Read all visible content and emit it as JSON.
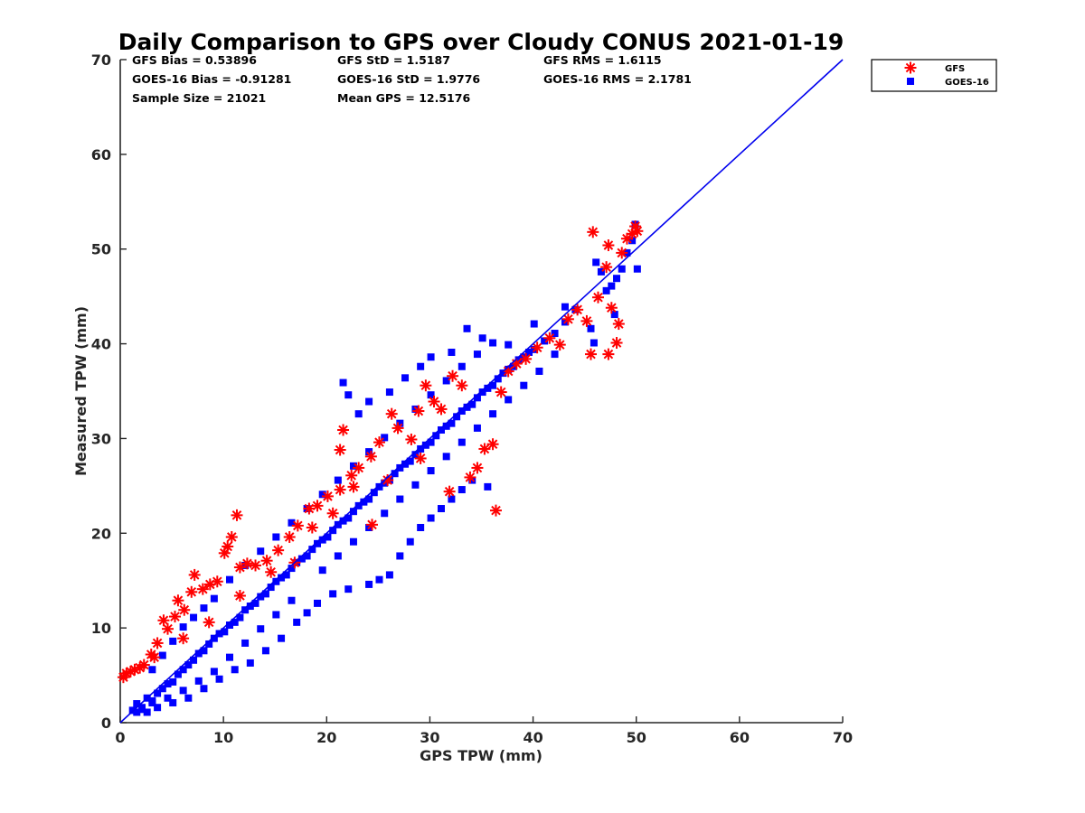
{
  "chart_data": {
    "type": "scatter",
    "title": "Daily Comparison to GPS over Cloudy CONUS 2021-01-19",
    "xlabel": "GPS TPW (mm)",
    "ylabel": "Measured TPW (mm)",
    "xlim": [
      0,
      70
    ],
    "ylim": [
      0,
      70
    ],
    "xticks": [
      "0",
      "10",
      "20",
      "30",
      "40",
      "50",
      "60",
      "70"
    ],
    "yticks": [
      "0",
      "10",
      "20",
      "30",
      "40",
      "50",
      "60",
      "70"
    ],
    "grid": false,
    "legend_position": "outside-top-right",
    "reference_line": {
      "x": [
        0,
        70
      ],
      "y": [
        0,
        70
      ],
      "color": "#0000ee"
    },
    "stats": [
      [
        "GFS Bias = 0.53896",
        "GFS StD = 1.5187",
        "GFS RMS = 1.6115"
      ],
      [
        "GOES-16 Bias = -0.91281",
        "GOES-16 StD = 1.9776",
        "GOES-16 RMS = 2.1781"
      ],
      [
        "Sample Size = 21021",
        "Mean GPS = 12.5176",
        ""
      ]
    ],
    "series": [
      {
        "name": "GFS",
        "marker": "asterisk",
        "color": "#ff0000",
        "points": [
          [
            0.3,
            4.8
          ],
          [
            0.6,
            5.2
          ],
          [
            1.0,
            5.4
          ],
          [
            1.4,
            5.6
          ],
          [
            1.9,
            5.8
          ],
          [
            2.3,
            6.1
          ],
          [
            3.0,
            7.2
          ],
          [
            3.6,
            8.4
          ],
          [
            4.2,
            10.8
          ],
          [
            4.6,
            9.9
          ],
          [
            5.3,
            11.2
          ],
          [
            5.6,
            12.9
          ],
          [
            6.2,
            11.9
          ],
          [
            6.9,
            13.8
          ],
          [
            7.2,
            15.6
          ],
          [
            8.0,
            14.1
          ],
          [
            8.7,
            14.6
          ],
          [
            9.4,
            14.9
          ],
          [
            10.1,
            17.9
          ],
          [
            10.4,
            18.6
          ],
          [
            10.8,
            19.6
          ],
          [
            11.3,
            21.9
          ],
          [
            11.6,
            16.4
          ],
          [
            12.3,
            16.8
          ],
          [
            13.1,
            16.6
          ],
          [
            14.2,
            17.1
          ],
          [
            15.3,
            18.2
          ],
          [
            16.4,
            19.6
          ],
          [
            17.2,
            20.8
          ],
          [
            18.3,
            22.6
          ],
          [
            19.1,
            22.9
          ],
          [
            20.1,
            23.9
          ],
          [
            21.3,
            24.6
          ],
          [
            21.6,
            30.9
          ],
          [
            21.3,
            28.8
          ],
          [
            22.4,
            26.1
          ],
          [
            23.1,
            26.9
          ],
          [
            24.3,
            28.1
          ],
          [
            25.1,
            29.6
          ],
          [
            26.3,
            32.6
          ],
          [
            26.9,
            31.1
          ],
          [
            28.2,
            29.9
          ],
          [
            28.9,
            32.9
          ],
          [
            29.6,
            35.6
          ],
          [
            30.4,
            33.9
          ],
          [
            31.1,
            33.1
          ],
          [
            32.2,
            36.6
          ],
          [
            33.1,
            35.6
          ],
          [
            33.9,
            25.9
          ],
          [
            34.6,
            26.9
          ],
          [
            35.3,
            28.9
          ],
          [
            36.1,
            29.4
          ],
          [
            36.4,
            22.4
          ],
          [
            36.9,
            34.9
          ],
          [
            37.6,
            37.1
          ],
          [
            38.4,
            37.9
          ],
          [
            39.3,
            38.4
          ],
          [
            40.4,
            39.6
          ],
          [
            41.6,
            40.6
          ],
          [
            42.6,
            39.9
          ],
          [
            43.4,
            42.6
          ],
          [
            44.3,
            43.6
          ],
          [
            45.2,
            42.4
          ],
          [
            45.6,
            38.9
          ],
          [
            45.8,
            51.8
          ],
          [
            46.3,
            44.9
          ],
          [
            47.1,
            48.1
          ],
          [
            47.3,
            50.4
          ],
          [
            47.6,
            43.8
          ],
          [
            47.3,
            38.9
          ],
          [
            48.1,
            40.1
          ],
          [
            48.3,
            42.1
          ],
          [
            48.6,
            49.6
          ],
          [
            49.1,
            51.1
          ],
          [
            49.6,
            51.6
          ],
          [
            49.9,
            52.4
          ],
          [
            50.1,
            51.9
          ],
          [
            25.9,
            25.6
          ],
          [
            22.6,
            24.9
          ],
          [
            18.6,
            20.6
          ],
          [
            14.6,
            15.9
          ],
          [
            11.6,
            13.4
          ],
          [
            8.6,
            10.6
          ],
          [
            6.1,
            8.9
          ],
          [
            3.3,
            6.9
          ],
          [
            16.9,
            16.9
          ],
          [
            29.1,
            27.9
          ],
          [
            31.9,
            24.4
          ],
          [
            24.4,
            20.9
          ],
          [
            20.6,
            22.1
          ]
        ]
      },
      {
        "name": "GOES-16",
        "marker": "square",
        "color": "#0000ff",
        "points": [
          [
            1.2,
            1.3
          ],
          [
            1.6,
            2.0
          ],
          [
            2.1,
            1.6
          ],
          [
            2.6,
            2.6
          ],
          [
            3.1,
            2.3
          ],
          [
            3.6,
            3.1
          ],
          [
            4.1,
            3.6
          ],
          [
            4.6,
            4.1
          ],
          [
            5.1,
            4.3
          ],
          [
            5.6,
            5.1
          ],
          [
            6.1,
            5.6
          ],
          [
            6.6,
            6.1
          ],
          [
            7.1,
            6.6
          ],
          [
            7.6,
            7.3
          ],
          [
            8.1,
            7.6
          ],
          [
            8.6,
            8.3
          ],
          [
            9.1,
            8.9
          ],
          [
            9.6,
            9.4
          ],
          [
            10.1,
            9.6
          ],
          [
            10.6,
            10.3
          ],
          [
            11.1,
            10.6
          ],
          [
            11.6,
            11.1
          ],
          [
            12.1,
            11.9
          ],
          [
            12.6,
            12.3
          ],
          [
            13.1,
            12.6
          ],
          [
            13.6,
            13.3
          ],
          [
            14.1,
            13.6
          ],
          [
            14.6,
            14.3
          ],
          [
            15.1,
            14.9
          ],
          [
            15.6,
            15.3
          ],
          [
            16.1,
            15.6
          ],
          [
            16.6,
            16.3
          ],
          [
            17.1,
            16.9
          ],
          [
            17.6,
            17.3
          ],
          [
            18.1,
            17.6
          ],
          [
            18.6,
            18.3
          ],
          [
            19.1,
            18.9
          ],
          [
            19.6,
            19.3
          ],
          [
            20.1,
            19.6
          ],
          [
            20.6,
            20.3
          ],
          [
            21.1,
            20.9
          ],
          [
            21.6,
            21.3
          ],
          [
            22.1,
            21.6
          ],
          [
            22.6,
            22.3
          ],
          [
            23.1,
            22.9
          ],
          [
            23.6,
            23.3
          ],
          [
            24.1,
            23.6
          ],
          [
            24.6,
            24.3
          ],
          [
            25.1,
            24.9
          ],
          [
            25.6,
            25.3
          ],
          [
            26.1,
            25.6
          ],
          [
            26.6,
            26.3
          ],
          [
            27.1,
            26.9
          ],
          [
            27.6,
            27.3
          ],
          [
            28.1,
            27.6
          ],
          [
            28.6,
            28.3
          ],
          [
            29.1,
            28.9
          ],
          [
            29.6,
            29.3
          ],
          [
            30.1,
            29.6
          ],
          [
            30.6,
            30.3
          ],
          [
            31.1,
            30.9
          ],
          [
            31.6,
            31.3
          ],
          [
            32.1,
            31.6
          ],
          [
            32.6,
            32.3
          ],
          [
            33.1,
            32.9
          ],
          [
            33.6,
            33.3
          ],
          [
            34.1,
            33.6
          ],
          [
            34.6,
            34.3
          ],
          [
            35.1,
            34.9
          ],
          [
            35.6,
            35.3
          ],
          [
            36.1,
            35.6
          ],
          [
            36.6,
            36.3
          ],
          [
            37.1,
            36.9
          ],
          [
            37.6,
            37.3
          ],
          [
            38.1,
            37.6
          ],
          [
            38.6,
            38.3
          ],
          [
            39.1,
            38.6
          ],
          [
            39.6,
            39.1
          ],
          [
            40.1,
            39.4
          ],
          [
            41.1,
            40.3
          ],
          [
            42.1,
            41.1
          ],
          [
            43.1,
            42.3
          ],
          [
            44.1,
            43.6
          ],
          [
            45.6,
            41.6
          ],
          [
            45.9,
            40.1
          ],
          [
            46.1,
            48.6
          ],
          [
            46.6,
            47.6
          ],
          [
            47.1,
            45.6
          ],
          [
            47.6,
            46.1
          ],
          [
            47.9,
            43.1
          ],
          [
            48.1,
            46.9
          ],
          [
            48.6,
            47.9
          ],
          [
            49.1,
            49.6
          ],
          [
            49.6,
            50.9
          ],
          [
            49.9,
            52.6
          ],
          [
            50.1,
            47.9
          ],
          [
            21.6,
            35.9
          ],
          [
            22.1,
            34.6
          ],
          [
            23.1,
            32.6
          ],
          [
            24.1,
            33.9
          ],
          [
            26.1,
            34.9
          ],
          [
            27.6,
            36.4
          ],
          [
            29.1,
            37.6
          ],
          [
            30.1,
            38.6
          ],
          [
            32.1,
            39.1
          ],
          [
            33.6,
            41.6
          ],
          [
            35.1,
            40.6
          ],
          [
            37.6,
            39.9
          ],
          [
            40.1,
            42.1
          ],
          [
            43.1,
            43.9
          ],
          [
            24.1,
            14.6
          ],
          [
            25.1,
            15.1
          ],
          [
            26.1,
            15.6
          ],
          [
            27.1,
            17.6
          ],
          [
            28.1,
            19.1
          ],
          [
            29.1,
            20.6
          ],
          [
            30.1,
            21.6
          ],
          [
            31.1,
            22.6
          ],
          [
            32.1,
            23.6
          ],
          [
            33.1,
            24.6
          ],
          [
            34.1,
            25.6
          ],
          [
            35.6,
            24.9
          ],
          [
            22.1,
            14.1
          ],
          [
            20.6,
            13.6
          ],
          [
            19.1,
            12.6
          ],
          [
            18.1,
            11.6
          ],
          [
            17.1,
            10.6
          ],
          [
            15.6,
            8.9
          ],
          [
            14.1,
            7.6
          ],
          [
            12.6,
            6.3
          ],
          [
            11.1,
            5.6
          ],
          [
            9.6,
            4.6
          ],
          [
            8.1,
            3.6
          ],
          [
            6.6,
            2.6
          ],
          [
            5.1,
            2.1
          ],
          [
            3.6,
            1.6
          ],
          [
            2.6,
            1.1
          ],
          [
            9.1,
            13.1
          ],
          [
            8.1,
            12.1
          ],
          [
            7.1,
            11.1
          ],
          [
            6.1,
            10.1
          ],
          [
            5.1,
            8.6
          ],
          [
            4.1,
            7.1
          ],
          [
            3.1,
            5.6
          ],
          [
            10.6,
            15.1
          ],
          [
            12.1,
            16.6
          ],
          [
            13.6,
            18.1
          ],
          [
            15.1,
            19.6
          ],
          [
            16.6,
            21.1
          ],
          [
            18.1,
            22.6
          ],
          [
            19.6,
            24.1
          ],
          [
            21.1,
            25.6
          ],
          [
            22.6,
            27.1
          ],
          [
            24.1,
            28.6
          ],
          [
            25.6,
            30.1
          ],
          [
            27.1,
            31.6
          ],
          [
            28.6,
            33.1
          ],
          [
            30.1,
            34.6
          ],
          [
            31.6,
            36.1
          ],
          [
            33.1,
            37.6
          ],
          [
            34.6,
            38.9
          ],
          [
            36.1,
            40.1
          ],
          [
            19.6,
            16.1
          ],
          [
            21.1,
            17.6
          ],
          [
            22.6,
            19.1
          ],
          [
            24.1,
            20.6
          ],
          [
            25.6,
            22.1
          ],
          [
            27.1,
            23.6
          ],
          [
            28.6,
            25.1
          ],
          [
            30.1,
            26.6
          ],
          [
            31.6,
            28.1
          ],
          [
            33.1,
            29.6
          ],
          [
            34.6,
            31.1
          ],
          [
            36.1,
            32.6
          ],
          [
            37.6,
            34.1
          ],
          [
            39.1,
            35.6
          ],
          [
            40.6,
            37.1
          ],
          [
            42.1,
            38.9
          ],
          [
            16.6,
            12.9
          ],
          [
            15.1,
            11.4
          ],
          [
            13.6,
            9.9
          ],
          [
            12.1,
            8.4
          ],
          [
            10.6,
            6.9
          ],
          [
            9.1,
            5.4
          ],
          [
            7.6,
            4.4
          ],
          [
            6.1,
            3.4
          ],
          [
            4.6,
            2.6
          ],
          [
            3.1,
            2.1
          ],
          [
            2.1,
            1.4
          ],
          [
            1.6,
            1.1
          ]
        ]
      }
    ]
  }
}
